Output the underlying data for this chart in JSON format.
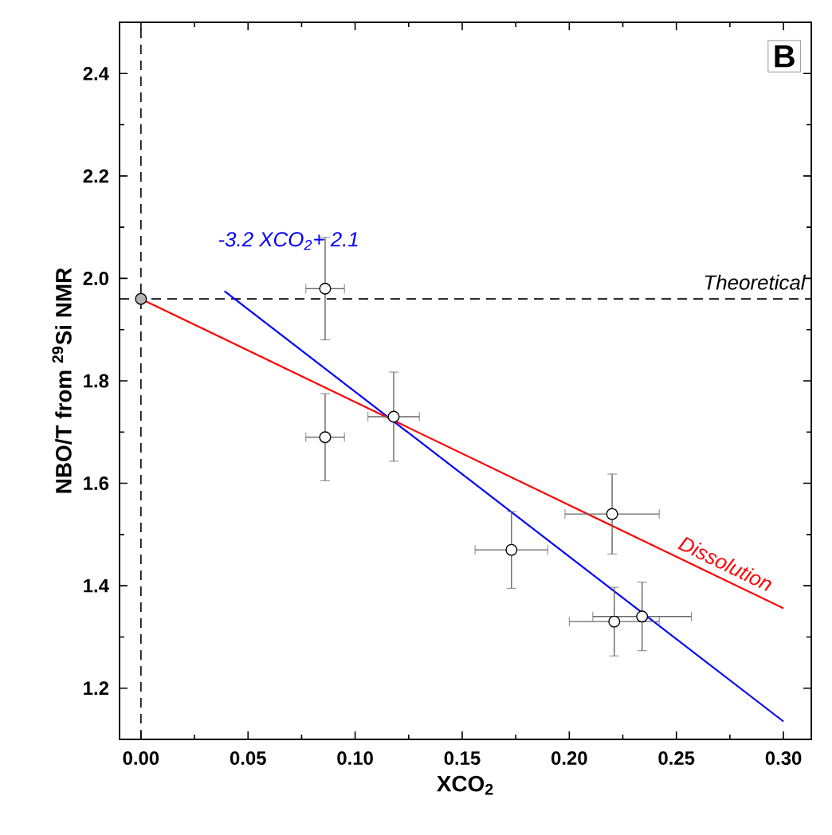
{
  "chart_data": {
    "type": "scatter",
    "xlabel": "XCO$_{2}$",
    "ylabel": "NBO/T from $^{29}$Si NMR",
    "annotations": [
      "B"
    ],
    "xlim": [
      -0.01,
      0.313
    ],
    "ylim": [
      1.1,
      2.5
    ],
    "xticks": [
      {
        "value": 0,
        "label": "0.00"
      },
      {
        "value": 0.025,
        "label": null
      },
      {
        "value": 0.05,
        "label": "0.05"
      },
      {
        "value": 0.075,
        "label": null
      },
      {
        "value": 0.1,
        "label": "0.10"
      },
      {
        "value": 0.125,
        "label": null
      },
      {
        "value": 0.15,
        "label": "0.15"
      },
      {
        "value": 0.175,
        "label": null
      },
      {
        "value": 0.2,
        "label": "0.20"
      },
      {
        "value": 0.225,
        "label": null
      },
      {
        "value": 0.25,
        "label": "0.25"
      },
      {
        "value": 0.275,
        "label": null
      },
      {
        "value": 0.3,
        "label": "0.30"
      }
    ],
    "yticks": [
      1.2,
      {
        "value": 1.3,
        "label": null
      },
      1.4,
      {
        "value": 1.5,
        "label": null
      },
      1.6,
      {
        "value": 1.7,
        "label": null
      },
      1.8,
      {
        "value": 1.9,
        "label": null
      },
      {
        "value": 2.0,
        "label": "2.0"
      },
      {
        "value": 2.1,
        "label": null
      },
      2.2,
      {
        "value": 2.3,
        "label": null
      },
      2.4
    ],
    "ref_lines": [
      {
        "axis": "x",
        "value": 0,
        "line_style": "dashed",
        "color": "#000000"
      },
      {
        "axis": "y",
        "value": 1.96,
        "label": "Theoretical",
        "line_style": "dashed",
        "color": "#000000"
      }
    ],
    "series": [
      {
        "type": "line",
        "name": "-3.2 XCO$_{2}$+ 2.1",
        "color": "#0000ff",
        "x": [
          0.039,
          0.3
        ],
        "values": [
          1.975,
          1.135
        ]
      },
      {
        "type": "line",
        "name": "Dissolution",
        "color": "#ff0000",
        "x": [
          0,
          0.3
        ],
        "values": [
          1.96,
          1.356
        ]
      },
      {
        "color": "#ffffff",
        "x": [
          0.086,
          0.086,
          0.118,
          0.173,
          0.22,
          0.221,
          0.234
        ],
        "values": [
          1.98,
          1.69,
          1.73,
          1.47,
          1.54,
          1.33,
          1.34
        ],
        "errors": [
          0.1,
          0.085,
          0.087,
          0.075,
          0.078,
          0.067,
          0.067
        ],
        "xerrors": [
          0.009,
          0.009,
          0.012,
          0.017,
          0.022,
          0.021,
          0.023
        ]
      },
      {
        "color": "#b4b4b4",
        "x": [
          0
        ],
        "values": [
          1.96
        ]
      }
    ]
  }
}
